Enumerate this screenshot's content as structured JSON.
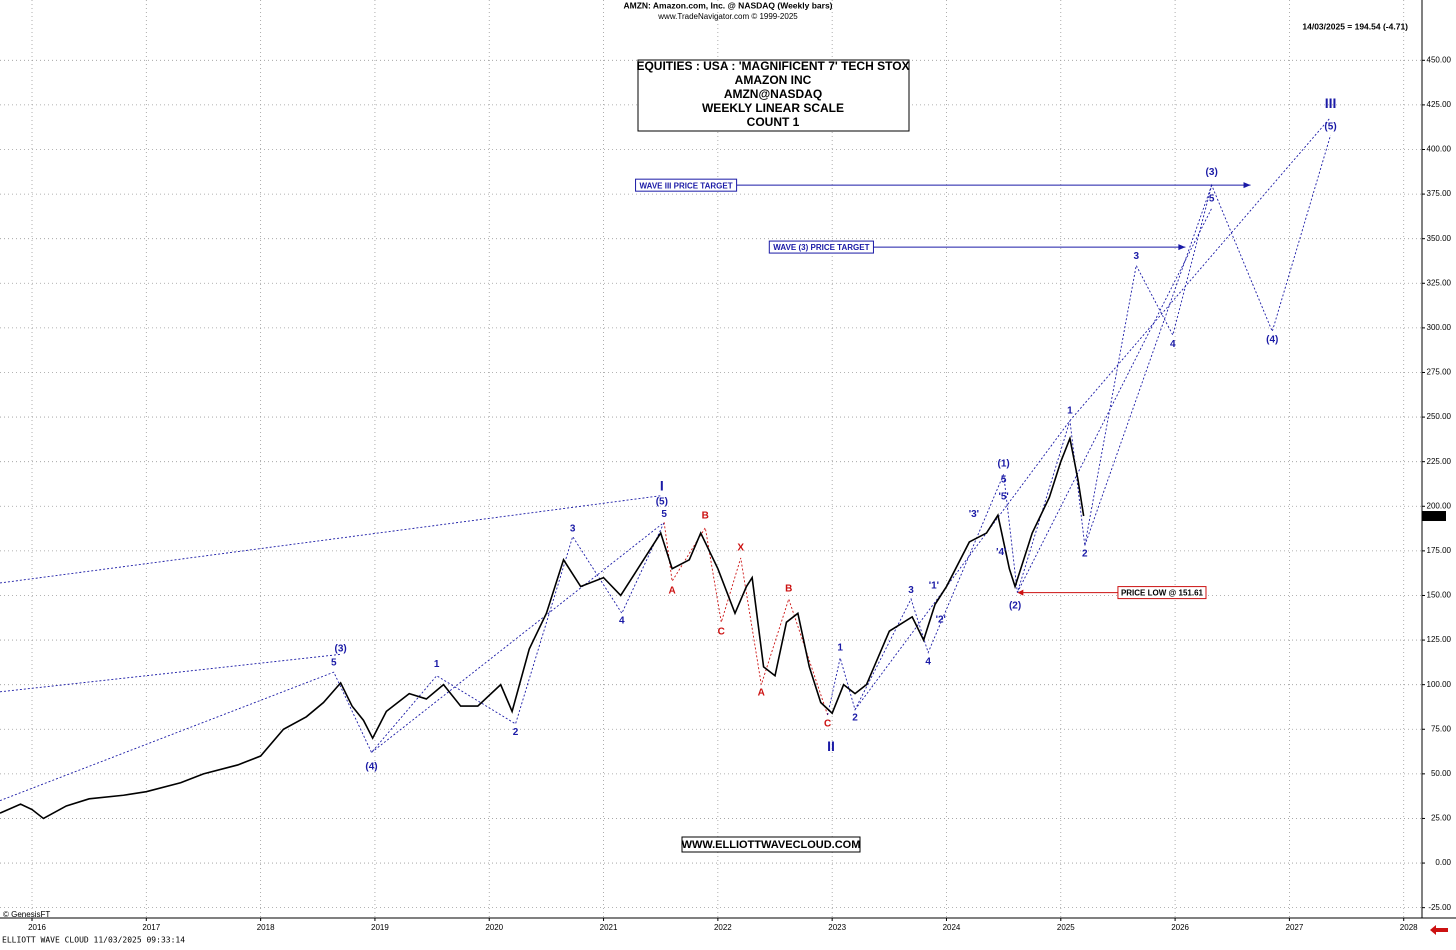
{
  "chart_data": {
    "type": "line",
    "header": "AMZN:  Amazon.com, Inc. @ NASDAQ  (Weekly bars)",
    "subheader": "www.TradeNavigator.com © 1999-2025",
    "quote": "14/03/2025 = 194.54 (-4.71)",
    "title_lines": [
      "EQUITIES : USA : 'MAGNIFICENT 7' TECH STOX",
      "AMAZON INC",
      "AMZN@NASDAQ",
      "WEEKLY LINEAR SCALE",
      "COUNT 1"
    ],
    "website": "WWW.ELLIOTTWAVECLOUD.COM",
    "credit": "© GenesisFT",
    "footer": "ELLIOTT WAVE CLOUD   11/03/2025 09:33:14",
    "last_price": 194.54,
    "xlim": [
      2015.72,
      2028.16
    ],
    "xticks": [
      2016,
      2017,
      2018,
      2019,
      2020,
      2021,
      2022,
      2023,
      2024,
      2025,
      2026,
      2027,
      2028
    ],
    "ylim": [
      -30.8,
      483.8
    ],
    "yticks": [
      {
        "value": -25,
        "label": "-25.00"
      },
      {
        "value": 0,
        "label": "0.00"
      },
      {
        "value": 25,
        "label": "25.00"
      },
      {
        "value": 50,
        "label": "50.00"
      },
      {
        "value": 75,
        "label": "75.00"
      },
      {
        "value": 100,
        "label": "100.00"
      },
      {
        "value": 125,
        "label": "125.00"
      },
      {
        "value": 150,
        "label": "150.00"
      },
      {
        "value": 175,
        "label": "175.00"
      },
      {
        "value": 200,
        "label": "200.00"
      },
      {
        "value": 225,
        "label": "225.00"
      },
      {
        "value": 250,
        "label": "250.00"
      },
      {
        "value": 275,
        "label": "275.00"
      },
      {
        "value": 300,
        "label": "300.00"
      },
      {
        "value": 325,
        "label": "325.00"
      },
      {
        "value": 350,
        "label": "350.00"
      },
      {
        "value": 375,
        "label": "375.00"
      },
      {
        "value": 400,
        "label": "400.00"
      },
      {
        "value": 425,
        "label": "425.00"
      },
      {
        "value": 450,
        "label": "450.00"
      }
    ],
    "grid": true,
    "x": [
      2015.72,
      2015.9,
      2016.0,
      2016.1,
      2016.3,
      2016.5,
      2016.8,
      2017.0,
      2017.3,
      2017.5,
      2017.8,
      2018.0,
      2018.2,
      2018.4,
      2018.55,
      2018.7,
      2018.8,
      2018.9,
      2018.98,
      2019.1,
      2019.3,
      2019.45,
      2019.6,
      2019.75,
      2019.9,
      2020.1,
      2020.2,
      2020.35,
      2020.5,
      2020.65,
      2020.8,
      2021.0,
      2021.15,
      2021.3,
      2021.5,
      2021.6,
      2021.75,
      2021.85,
      2022.0,
      2022.15,
      2022.25,
      2022.3,
      2022.4,
      2022.5,
      2022.6,
      2022.7,
      2022.8,
      2022.9,
      2023.0,
      2023.1,
      2023.2,
      2023.3,
      2023.5,
      2023.7,
      2023.8,
      2023.9,
      2024.0,
      2024.2,
      2024.35,
      2024.45,
      2024.55,
      2024.6,
      2024.75,
      2024.9,
      2025.0,
      2025.08,
      2025.15,
      2025.2
    ],
    "series": [
      {
        "name": "AMZN",
        "color": "#000000",
        "values": [
          28,
          33,
          30,
          25,
          32,
          36,
          38,
          40,
          45,
          50,
          55,
          60,
          75,
          82,
          90,
          101,
          88,
          80,
          70,
          85,
          95,
          92,
          100,
          88,
          88,
          100,
          85,
          120,
          140,
          170,
          155,
          160,
          150,
          165,
          185,
          165,
          170,
          185,
          165,
          140,
          155,
          160,
          110,
          105,
          135,
          140,
          110,
          90,
          84,
          100,
          95,
          100,
          130,
          138,
          125,
          145,
          155,
          180,
          185,
          195,
          165,
          155,
          185,
          205,
          225,
          238,
          215,
          194.54
        ]
      }
    ],
    "annotations": [
      {
        "text": "I",
        "x": 2021.51,
        "y": 210.8,
        "color": "#1a1aa6"
      },
      {
        "text": "(5)",
        "x": 2021.51,
        "y": 202.4,
        "color": "#1a1aa6"
      },
      {
        "text": "5",
        "x": 2021.53,
        "y": 195.6,
        "color": "#1a1aa6"
      },
      {
        "text": "3",
        "x": 2020.73,
        "y": 187.2,
        "color": "#1a1aa6"
      },
      {
        "text": "4",
        "x": 2021.16,
        "y": 135.7,
        "color": "#1a1aa6"
      },
      {
        "text": "B",
        "x": 2021.89,
        "y": 194.5,
        "color": "#cc1111"
      },
      {
        "text": "A",
        "x": 2021.6,
        "y": 152.5,
        "color": "#cc1111"
      },
      {
        "text": "X",
        "x": 2022.2,
        "y": 176.6,
        "color": "#cc1111"
      },
      {
        "text": "C",
        "x": 2022.03,
        "y": 129.5,
        "color": "#cc1111"
      },
      {
        "text": "B",
        "x": 2022.62,
        "y": 153.6,
        "color": "#cc1111"
      },
      {
        "text": "A",
        "x": 2022.38,
        "y": 95.3,
        "color": "#cc1111"
      },
      {
        "text": "C",
        "x": 2022.96,
        "y": 77.9,
        "color": "#cc1111"
      },
      {
        "text": "II",
        "x": 2022.99,
        "y": 65.0,
        "color": "#1a1aa6"
      },
      {
        "text": "1",
        "x": 2023.07,
        "y": 120.5,
        "color": "#1a1aa6"
      },
      {
        "text": "2",
        "x": 2023.2,
        "y": 81.3,
        "color": "#1a1aa6"
      },
      {
        "text": "3",
        "x": 2023.69,
        "y": 153.0,
        "color": "#1a1aa6"
      },
      {
        "text": "'1'",
        "x": 2023.89,
        "y": 155.3,
        "color": "#1a1aa6"
      },
      {
        "text": "'2'",
        "x": 2023.95,
        "y": 136.2,
        "color": "#1a1aa6"
      },
      {
        "text": "4",
        "x": 2023.84,
        "y": 112.7,
        "color": "#1a1aa6"
      },
      {
        "text": "'3'",
        "x": 2024.24,
        "y": 195.6,
        "color": "#1a1aa6"
      },
      {
        "text": "'4'",
        "x": 2024.48,
        "y": 174.3,
        "color": "#1a1aa6"
      },
      {
        "text": "'5'",
        "x": 2024.5,
        "y": 205.2,
        "color": "#1a1aa6"
      },
      {
        "text": "5",
        "x": 2024.5,
        "y": 214.7,
        "color": "#1a1aa6"
      },
      {
        "text": "(1)",
        "x": 2024.5,
        "y": 223.7,
        "color": "#1a1aa6"
      },
      {
        "text": "(2)",
        "x": 2024.6,
        "y": 144.1,
        "color": "#1a1aa6"
      },
      {
        "text": "1",
        "x": 2025.08,
        "y": 253.4,
        "color": "#1a1aa6"
      },
      {
        "text": "2",
        "x": 2025.21,
        "y": 173.2,
        "color": "#1a1aa6"
      },
      {
        "text": "3",
        "x": 2025.66,
        "y": 340.2,
        "color": "#1a1aa6"
      },
      {
        "text": "4",
        "x": 2025.98,
        "y": 290.9,
        "color": "#1a1aa6"
      },
      {
        "text": "5",
        "x": 2026.32,
        "y": 372.2,
        "color": "#1a1aa6"
      },
      {
        "text": "(3)",
        "x": 2026.32,
        "y": 387.3,
        "color": "#1a1aa6"
      },
      {
        "text": "(4)",
        "x": 2026.85,
        "y": 293.2,
        "color": "#1a1aa6"
      },
      {
        "text": "(5)",
        "x": 2027.36,
        "y": 412.6,
        "color": "#1a1aa6"
      },
      {
        "text": "III",
        "x": 2027.36,
        "y": 425.4,
        "color": "#1a1aa6"
      },
      {
        "text": "5",
        "x": 2018.64,
        "y": 112.1,
        "color": "#1a1aa6"
      },
      {
        "text": "(3)",
        "x": 2018.7,
        "y": 120.0,
        "color": "#1a1aa6"
      },
      {
        "text": "(4)",
        "x": 2018.97,
        "y": 53.8,
        "color": "#1a1aa6"
      },
      {
        "text": "1",
        "x": 2019.54,
        "y": 111.5,
        "color": "#1a1aa6"
      },
      {
        "text": "2",
        "x": 2020.23,
        "y": 73.4,
        "color": "#1a1aa6"
      }
    ],
    "wave_lines": [
      {
        "color": "#1a1aa6",
        "points": [
          [
            2015.72,
            157
          ],
          [
            2021.51,
            206
          ]
        ]
      },
      {
        "color": "#1a1aa6",
        "points": [
          [
            2015.72,
            96
          ],
          [
            2018.7,
            117
          ]
        ]
      },
      {
        "color": "#1a1aa6",
        "points": [
          [
            2015.72,
            35
          ],
          [
            2018.64,
            107
          ],
          [
            2018.97,
            62
          ],
          [
            2019.54,
            105
          ],
          [
            2020.23,
            78
          ],
          [
            2020.73,
            183
          ],
          [
            2021.16,
            140
          ],
          [
            2021.53,
            191
          ]
        ]
      },
      {
        "color": "#1a1aa6",
        "points": [
          [
            2018.97,
            62
          ],
          [
            2021.51,
            190
          ]
        ]
      },
      {
        "color": "#cc1111",
        "points": [
          [
            2021.53,
            191
          ],
          [
            2021.6,
            158
          ],
          [
            2021.89,
            188
          ],
          [
            2022.03,
            135
          ],
          [
            2022.2,
            171
          ],
          [
            2022.38,
            100
          ],
          [
            2022.62,
            148
          ],
          [
            2022.96,
            83
          ]
        ]
      },
      {
        "color": "#1a1aa6",
        "points": [
          [
            2022.96,
            83
          ],
          [
            2023.07,
            115
          ],
          [
            2023.2,
            86
          ],
          [
            2023.69,
            148
          ],
          [
            2023.84,
            118
          ],
          [
            2024.5,
            218
          ],
          [
            2024.62,
            151.61
          ],
          [
            2025.08,
            248
          ],
          [
            2025.21,
            178
          ],
          [
            2025.66,
            335
          ],
          [
            2025.98,
            296
          ],
          [
            2026.32,
            380
          ],
          [
            2026.85,
            298
          ],
          [
            2027.36,
            408
          ]
        ]
      },
      {
        "color": "#1a1aa6",
        "points": [
          [
            2023.2,
            86
          ],
          [
            2025.08,
            248
          ],
          [
            2027.36,
            418
          ]
        ]
      },
      {
        "color": "#1a1aa6",
        "points": [
          [
            2024.62,
            151.61
          ],
          [
            2026.32,
            367
          ]
        ]
      },
      {
        "color": "#1a1aa6",
        "points": [
          [
            2025.21,
            178
          ],
          [
            2026.32,
            380
          ]
        ]
      }
    ],
    "targets": [
      {
        "label": "WAVE III PRICE TARGET",
        "value": 380,
        "x_start": 2021.28,
        "x_end": 2026.66
      },
      {
        "label": "WAVE (3) PRICE TARGET",
        "value": 345.3,
        "x_start": 2022.45,
        "x_end": 2026.09
      }
    ],
    "price_low": {
      "label": "PRICE LOW @ 151.61",
      "value": 151.61,
      "x": 2024.62,
      "x_box": 2025.5
    }
  }
}
